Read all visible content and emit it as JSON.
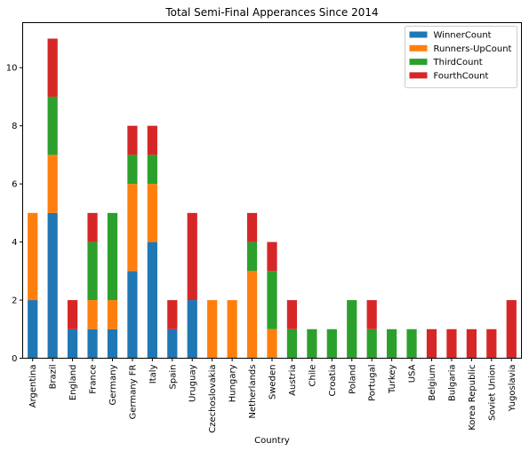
{
  "chart_data": {
    "type": "bar",
    "stacked": true,
    "title": "Total Semi-Final Apperances Since 2014",
    "xlabel": "Country",
    "ylabel": "",
    "ylim": [
      0,
      11.55
    ],
    "yticks": [
      0,
      2,
      4,
      6,
      8,
      10
    ],
    "grid": false,
    "legend_position": "top-right",
    "categories": [
      "Argentina",
      "Brazil",
      "England",
      "France",
      "Germany",
      "Germany FR",
      "Italy",
      "Spain",
      "Uruguay",
      "Czechoslovakia",
      "Hungary",
      "Netherlands",
      "Sweden",
      "Austria",
      "Chile",
      "Croatia",
      "Poland",
      "Portugal",
      "Turkey",
      "USA",
      "Belgium",
      "Bulgaria",
      "Korea Republic",
      "Soviet Union",
      "Yugoslavia"
    ],
    "series": [
      {
        "name": "WinnerCount",
        "color": "#1f77b4",
        "values": [
          2,
          5,
          1,
          1,
          1,
          3,
          4,
          1,
          2,
          0,
          0,
          0,
          0,
          0,
          0,
          0,
          0,
          0,
          0,
          0,
          0,
          0,
          0,
          0,
          0
        ]
      },
      {
        "name": "Runners-UpCount",
        "color": "#ff7f0e",
        "values": [
          3,
          2,
          0,
          1,
          1,
          3,
          2,
          0,
          0,
          2,
          2,
          3,
          1,
          0,
          0,
          0,
          0,
          0,
          0,
          0,
          0,
          0,
          0,
          0,
          0
        ]
      },
      {
        "name": "ThirdCount",
        "color": "#2ca02c",
        "values": [
          0,
          2,
          0,
          2,
          3,
          1,
          1,
          0,
          0,
          0,
          0,
          1,
          2,
          1,
          1,
          1,
          2,
          1,
          1,
          1,
          0,
          0,
          0,
          0,
          0
        ]
      },
      {
        "name": "FourthCount",
        "color": "#d62728",
        "values": [
          0,
          2,
          1,
          1,
          0,
          1,
          1,
          1,
          3,
          0,
          0,
          1,
          1,
          1,
          0,
          0,
          0,
          1,
          0,
          0,
          1,
          1,
          1,
          1,
          2
        ]
      }
    ]
  }
}
